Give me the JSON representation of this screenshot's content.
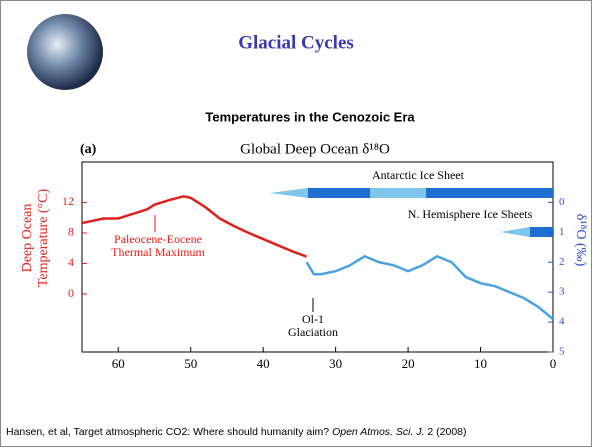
{
  "header": {
    "title": "Glacial Cycles",
    "subtitle": "Temperatures in the Cenozoic Era"
  },
  "chart_data": {
    "type": "line",
    "panel_label": "(a)",
    "title": "Global Deep Ocean δ¹⁸O",
    "ylabel": [
      "Deep Ocean",
      "Temperature (°C)"
    ],
    "y2label": "δ¹⁸O (‰)",
    "xlim": [
      65,
      0
    ],
    "xticks": [
      60,
      50,
      40,
      30,
      20,
      10,
      0
    ],
    "ylim": [
      -7.6,
      17.3
    ],
    "yticks": [
      0,
      4,
      8,
      12
    ],
    "y2lim": [
      5,
      -1.35
    ],
    "y2ticks": [
      0,
      1,
      2,
      3,
      4,
      5
    ],
    "series": [
      {
        "color": "#e0201b",
        "axis": "y",
        "x": [
          65,
          62,
          60,
          58,
          56,
          55,
          53,
          51,
          50,
          48,
          46,
          44,
          42,
          40,
          38,
          36,
          34
        ],
        "values": [
          9.3,
          9.9,
          9.9,
          10.5,
          11.1,
          11.7,
          12.3,
          12.8,
          12.6,
          11.4,
          9.9,
          8.9,
          8.0,
          7.2,
          6.4,
          5.6,
          4.9
        ]
      },
      {
        "color": "#4aa3df",
        "axis": "y2",
        "x": [
          34,
          33,
          32,
          30,
          28,
          26,
          24,
          22,
          20,
          18,
          16,
          14,
          12,
          10,
          8,
          6,
          4,
          2,
          0
        ],
        "values": [
          2.0,
          2.4,
          2.4,
          2.3,
          2.1,
          1.8,
          2.0,
          2.1,
          2.3,
          2.1,
          1.8,
          2.0,
          2.5,
          2.7,
          2.8,
          3.0,
          3.2,
          3.5,
          3.9
        ]
      }
    ],
    "annotations": {
      "petm": [
        "Paleocene-Eocene",
        "Thermal Maximum"
      ],
      "oi1": [
        "Ol-1",
        "Glaciation"
      ],
      "antarctic": "Antarctic Ice Sheet",
      "nh": "N. Hemisphere Ice Sheets"
    }
  },
  "footer": {
    "parts": [
      "Hansen, et al, Target atmospheric CO2: Where should humanity aim? ",
      "Open Atmos. Sci. J.",
      " 2 (2008)"
    ]
  }
}
